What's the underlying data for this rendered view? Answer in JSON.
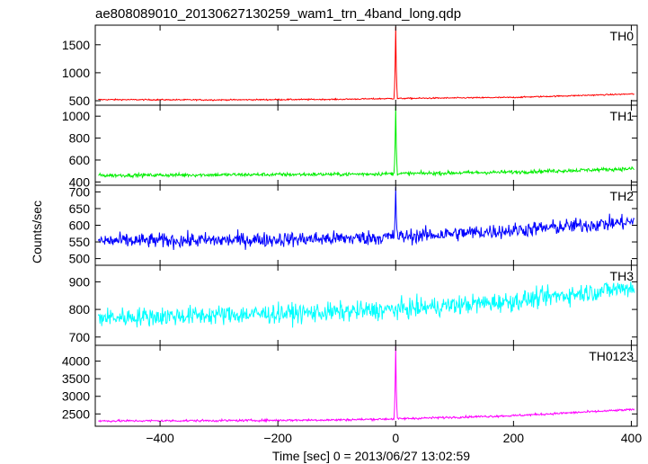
{
  "chart_data": {
    "type": "line",
    "title": "ae808089010_20130627130259_wam1_trn_4band_long.qdp",
    "xlabel": "Time [sec] 0 = 2013/06/27 13:02:59",
    "ylabel": "Counts/sec",
    "xlim": [
      -510,
      410
    ],
    "xticks": [
      -400,
      -200,
      0,
      200,
      400
    ],
    "panels": [
      {
        "name": "TH0",
        "color": "#ff0000",
        "ylim": [
          420,
          1850
        ],
        "yticks": [
          500,
          1000,
          1500
        ],
        "baseline": [
          [
            -500,
            520
          ],
          [
            -300,
            515
          ],
          [
            -100,
            525
          ],
          [
            0,
            540
          ],
          [
            200,
            560
          ],
          [
            400,
            620
          ]
        ],
        "noise": 8,
        "spike": {
          "x": 0,
          "peak": 1820
        }
      },
      {
        "name": "TH1",
        "color": "#00ee00",
        "ylim": [
          370,
          1100
        ],
        "yticks": [
          400,
          600,
          800,
          1000
        ],
        "baseline": [
          [
            -500,
            460
          ],
          [
            -300,
            465
          ],
          [
            -100,
            470
          ],
          [
            0,
            475
          ],
          [
            200,
            490
          ],
          [
            400,
            520
          ]
        ],
        "noise": 12,
        "spike": {
          "x": 0,
          "peak": 1090
        }
      },
      {
        "name": "TH2",
        "color": "#0000ff",
        "ylim": [
          480,
          720
        ],
        "yticks": [
          500,
          550,
          600,
          650,
          700
        ],
        "baseline": [
          [
            -500,
            553
          ],
          [
            -300,
            555
          ],
          [
            -100,
            560
          ],
          [
            0,
            565
          ],
          [
            200,
            585
          ],
          [
            400,
            610
          ]
        ],
        "noise": 16,
        "spike": {
          "x": 0,
          "peak": 715
        }
      },
      {
        "name": "TH3",
        "color": "#00ffff",
        "ylim": [
          670,
          960
        ],
        "yticks": [
          700,
          800,
          900
        ],
        "baseline": [
          [
            -500,
            770
          ],
          [
            -300,
            780
          ],
          [
            -100,
            790
          ],
          [
            0,
            800
          ],
          [
            200,
            830
          ],
          [
            400,
            880
          ]
        ],
        "noise": 25,
        "spike": null
      },
      {
        "name": "TH0123",
        "color": "#ff00ff",
        "ylim": [
          2150,
          4450
        ],
        "yticks": [
          2500,
          3000,
          3500,
          4000
        ],
        "baseline": [
          [
            -500,
            2300
          ],
          [
            -300,
            2310
          ],
          [
            -100,
            2330
          ],
          [
            0,
            2360
          ],
          [
            200,
            2450
          ],
          [
            400,
            2620
          ]
        ],
        "noise": 22,
        "spike": {
          "x": 0,
          "peak": 4420
        }
      }
    ],
    "grid": false,
    "legend": "none"
  }
}
